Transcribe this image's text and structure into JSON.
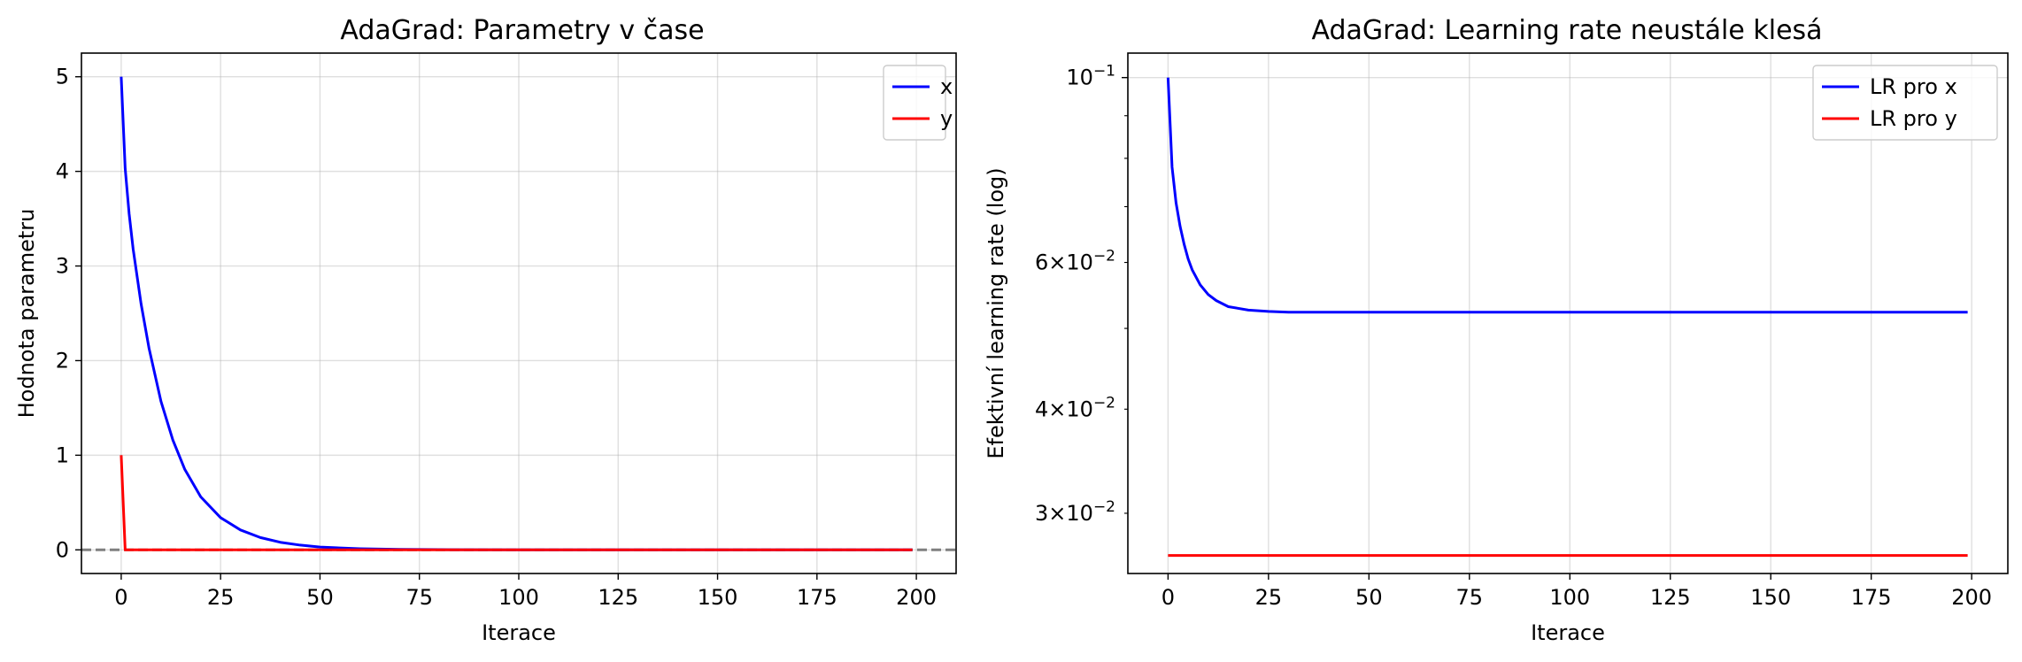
{
  "chart_data": [
    {
      "type": "line",
      "title": "AdaGrad: Parametry v čase",
      "xlabel": "Iterace",
      "ylabel": "Hodnota parametru",
      "xlim": [
        -10,
        210
      ],
      "ylim": [
        -0.25,
        5.25
      ],
      "xticks": [
        0,
        25,
        50,
        75,
        100,
        125,
        150,
        175,
        200
      ],
      "yticks": [
        0,
        1,
        2,
        3,
        4,
        5
      ],
      "grid": true,
      "legend_position": "upper right",
      "reference_line": {
        "y": 0,
        "style": "dashed",
        "color": "#808080"
      },
      "series": [
        {
          "name": "x",
          "color": "#0000ff",
          "x": [
            0,
            1,
            2,
            3,
            5,
            7,
            10,
            13,
            16,
            20,
            25,
            30,
            35,
            40,
            45,
            50,
            55,
            60,
            70,
            80,
            100,
            120,
            150,
            175,
            199
          ],
          "y": [
            5.0,
            4.03,
            3.55,
            3.18,
            2.6,
            2.13,
            1.57,
            1.16,
            0.85,
            0.56,
            0.34,
            0.21,
            0.13,
            0.08,
            0.05,
            0.03,
            0.02,
            0.012,
            0.005,
            0.002,
            0.0,
            0.0,
            0.0,
            0.0,
            0.0
          ]
        },
        {
          "name": "y",
          "color": "#ff0000",
          "x": [
            0,
            1,
            2,
            50,
            100,
            150,
            199
          ],
          "y": [
            1.0,
            0.0,
            0.0,
            0.0,
            0.0,
            0.0,
            0.0
          ]
        }
      ]
    },
    {
      "type": "line",
      "title": "AdaGrad: Learning rate neustále klesá",
      "xlabel": "Iterace",
      "ylabel": "Efektivní learning rate (log)",
      "xlim": [
        -10,
        209
      ],
      "ylim": [
        0.0254,
        0.107
      ],
      "yscale": "log",
      "xticks": [
        0,
        25,
        50,
        75,
        100,
        125,
        150,
        175,
        200
      ],
      "yticks_major": [
        {
          "value": 0.1,
          "mantissa": "",
          "exponent": "−1"
        }
      ],
      "yticks_minor": [
        {
          "value": 0.03,
          "mantissa": "3",
          "exponent": "−2"
        },
        {
          "value": 0.04,
          "mantissa": "4",
          "exponent": "−2"
        },
        {
          "value": 0.05,
          "mantissa": "",
          "exponent": ""
        },
        {
          "value": 0.06,
          "mantissa": "6",
          "exponent": "−2"
        },
        {
          "value": 0.07,
          "mantissa": "",
          "exponent": ""
        },
        {
          "value": 0.08,
          "mantissa": "",
          "exponent": ""
        },
        {
          "value": 0.09,
          "mantissa": "",
          "exponent": ""
        }
      ],
      "grid": true,
      "legend_position": "upper right",
      "series": [
        {
          "name": "LR pro x",
          "color": "#0000ff",
          "x": [
            0,
            1,
            2,
            3,
            4,
            5,
            6,
            8,
            10,
            12,
            15,
            20,
            25,
            30,
            40,
            60,
            100,
            150,
            199
          ],
          "y": [
            0.1,
            0.0781,
            0.0707,
            0.0663,
            0.0631,
            0.0606,
            0.0588,
            0.0564,
            0.0549,
            0.054,
            0.0531,
            0.0526,
            0.0524,
            0.0523,
            0.0523,
            0.0523,
            0.0523,
            0.0523,
            0.0523
          ]
        },
        {
          "name": "LR pro y",
          "color": "#ff0000",
          "x": [
            0,
            50,
            100,
            150,
            199
          ],
          "y": [
            0.0267,
            0.0267,
            0.0267,
            0.0267,
            0.0267
          ]
        }
      ]
    }
  ]
}
